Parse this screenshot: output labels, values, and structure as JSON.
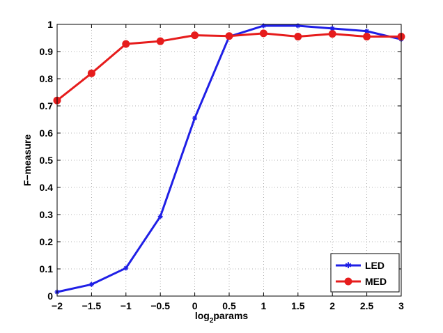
{
  "chart_data": {
    "type": "line",
    "title": "",
    "xlabel": "log2params",
    "xlabel_base": "log",
    "xlabel_sub": "2",
    "xlabel_rest": "params",
    "ylabel": "F−measure",
    "xlim": [
      -2,
      3
    ],
    "ylim": [
      0,
      1
    ],
    "grid": true,
    "legend_position": "bottom-right",
    "x": [
      -2,
      -1.5,
      -1,
      -0.5,
      0,
      0.5,
      1,
      1.5,
      2,
      2.5,
      3
    ],
    "x_tick_labels": [
      "−2",
      "−1.5",
      "−1",
      "−0.5",
      "0",
      "0.5",
      "1",
      "1.5",
      "2",
      "2.5",
      "3"
    ],
    "y_ticks": [
      0,
      0.1,
      0.2,
      0.3,
      0.4,
      0.5,
      0.6,
      0.7,
      0.8,
      0.9,
      1
    ],
    "y_tick_labels": [
      "0",
      "0.1",
      "0.2",
      "0.3",
      "0.4",
      "0.5",
      "0.6",
      "0.7",
      "0.8",
      "0.9",
      "1"
    ],
    "series": [
      {
        "name": "LED",
        "color": "#1f1fe6",
        "marker": "star",
        "values": [
          0.015,
          0.043,
          0.103,
          0.293,
          0.655,
          0.955,
          0.995,
          0.995,
          0.985,
          0.975,
          0.945
        ]
      },
      {
        "name": "MED",
        "color": "#e61c1c",
        "marker": "circle",
        "values": [
          0.72,
          0.82,
          0.928,
          0.938,
          0.96,
          0.957,
          0.967,
          0.955,
          0.965,
          0.955,
          0.955
        ]
      }
    ]
  }
}
